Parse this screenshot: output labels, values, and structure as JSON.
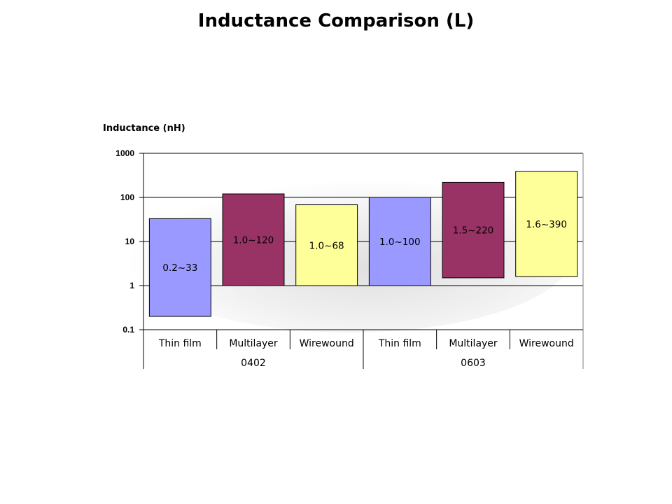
{
  "page": {
    "title": "Inductance Comparison (L)"
  },
  "chart_data": {
    "type": "bar",
    "title": "Inductance Comparison (L)",
    "ylabel": "Inductance (nH)",
    "yscale": "log",
    "ylim": [
      0.1,
      1000
    ],
    "yticks": [
      0.1,
      1,
      10,
      100,
      1000
    ],
    "ytick_labels": [
      "0.1",
      "1",
      "10",
      "100",
      "1000"
    ],
    "grid": true,
    "legend": "none",
    "groups": [
      "0402",
      "0603"
    ],
    "categories": [
      "Thin film",
      "Multilayer",
      "Wirewound",
      "Thin film",
      "Multilayer",
      "Wirewound"
    ],
    "category_group": [
      0,
      0,
      0,
      1,
      1,
      1
    ],
    "ranges": [
      {
        "low": 0.2,
        "high": 33,
        "label": "0.2~33",
        "color": "#9999ff"
      },
      {
        "low": 1.0,
        "high": 120,
        "label": "1.0~120",
        "color": "#993366"
      },
      {
        "low": 1.0,
        "high": 68,
        "label": "1.0~68",
        "color": "#ffff99"
      },
      {
        "low": 1.0,
        "high": 100,
        "label": "1.0~100",
        "color": "#9999ff"
      },
      {
        "low": 1.5,
        "high": 220,
        "label": "1.5~220",
        "color": "#993366"
      },
      {
        "low": 1.6,
        "high": 390,
        "label": "1.6~390",
        "color": "#ffff99"
      }
    ]
  }
}
